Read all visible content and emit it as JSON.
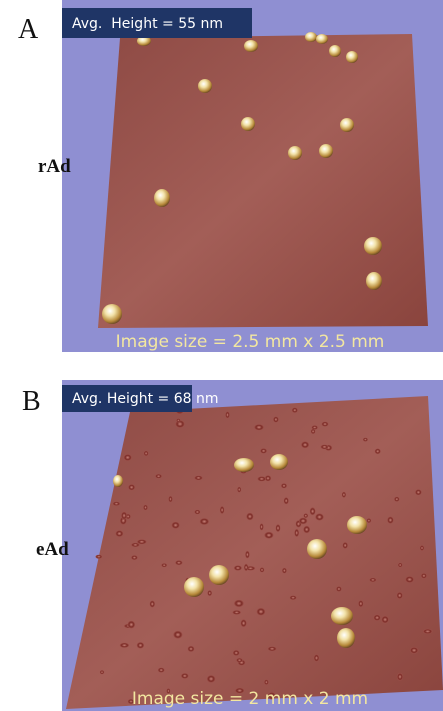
{
  "panels": [
    {
      "letter": "A",
      "avg_height": "Avg.  Height = 55 nm",
      "sample": "rAd",
      "image_size": "Image size = 2.5 mm x 2.5 mm"
    },
    {
      "letter": "B",
      "avg_height": "Avg. Height = 68 nm",
      "sample": "eAd",
      "image_size": "Image size = 2 mm x 2 mm"
    }
  ]
}
